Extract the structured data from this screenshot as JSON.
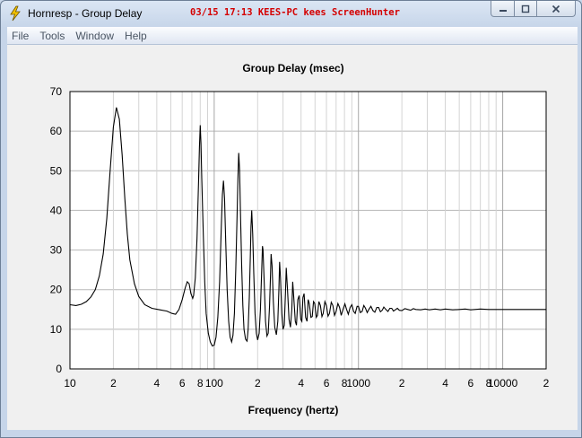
{
  "window": {
    "title": "Hornresp - Group Delay",
    "watermark": "03/15 17:13 KEES-PC kees ScreenHunter",
    "controls": [
      "minimize-icon",
      "maximize-icon",
      "close-icon"
    ]
  },
  "menu": {
    "items": [
      {
        "label": "File"
      },
      {
        "label": "Tools"
      },
      {
        "label": "Window"
      },
      {
        "label": "Help"
      }
    ]
  },
  "chart_data": {
    "type": "line",
    "title": "Group Delay (msec)",
    "xlabel": "Frequency (hertz)",
    "ylabel": "",
    "x_scale": "log",
    "xlim": [
      10,
      20000
    ],
    "ylim": [
      0,
      70
    ],
    "grid": true,
    "y_ticks": [
      "0",
      "10",
      "20",
      "30",
      "40",
      "50",
      "60",
      "70"
    ],
    "x_tick_labels": [
      {
        "value": 10,
        "label": "10"
      },
      {
        "value": 20,
        "label": "2"
      },
      {
        "value": 40,
        "label": "4"
      },
      {
        "value": 60,
        "label": "6"
      },
      {
        "value": 80,
        "label": "8"
      },
      {
        "value": 100,
        "label": "100"
      },
      {
        "value": 200,
        "label": "2"
      },
      {
        "value": 400,
        "label": "4"
      },
      {
        "value": 600,
        "label": "6"
      },
      {
        "value": 800,
        "label": "8"
      },
      {
        "value": 1000,
        "label": "1000"
      },
      {
        "value": 2000,
        "label": "2"
      },
      {
        "value": 4000,
        "label": "4"
      },
      {
        "value": 6000,
        "label": "6"
      },
      {
        "value": 8000,
        "label": "8"
      },
      {
        "value": 10000,
        "label": "10000"
      },
      {
        "value": 20000,
        "label": "2"
      }
    ],
    "series": [
      {
        "color": "#000000",
        "points": [
          [
            10,
            16.2
          ],
          [
            11,
            16.0
          ],
          [
            12,
            16.3
          ],
          [
            13,
            17.0
          ],
          [
            14,
            18.2
          ],
          [
            15,
            20.0
          ],
          [
            16,
            23.5
          ],
          [
            17,
            29.0
          ],
          [
            18,
            38.0
          ],
          [
            19,
            50.0
          ],
          [
            20,
            61.0
          ],
          [
            21,
            66.0
          ],
          [
            22,
            63.0
          ],
          [
            23,
            54.0
          ],
          [
            24,
            43.0
          ],
          [
            25,
            34.0
          ],
          [
            26,
            27.5
          ],
          [
            28,
            21.5
          ],
          [
            30,
            18.3
          ],
          [
            33,
            16.2
          ],
          [
            37,
            15.3
          ],
          [
            42,
            14.9
          ],
          [
            47,
            14.6
          ],
          [
            51,
            14.0
          ],
          [
            54,
            13.8
          ],
          [
            57,
            15.0
          ],
          [
            60,
            17.5
          ],
          [
            63,
            20.5
          ],
          [
            65,
            22.0
          ],
          [
            67,
            21.5
          ],
          [
            69,
            19.0
          ],
          [
            71,
            17.8
          ],
          [
            72,
            18.5
          ],
          [
            74,
            23.0
          ],
          [
            76,
            33.0
          ],
          [
            78,
            48.0
          ],
          [
            79,
            56.0
          ],
          [
            80,
            61.5
          ],
          [
            81,
            57.0
          ],
          [
            82,
            48.0
          ],
          [
            84,
            34.0
          ],
          [
            86,
            22.0
          ],
          [
            88,
            14.0
          ],
          [
            91,
            9.0
          ],
          [
            94,
            6.8
          ],
          [
            97,
            5.8
          ],
          [
            100,
            6.0
          ],
          [
            103,
            8.0
          ],
          [
            106,
            13.0
          ],
          [
            109,
            22.0
          ],
          [
            112,
            36.0
          ],
          [
            114,
            44.0
          ],
          [
            116,
            47.5
          ],
          [
            118,
            43.0
          ],
          [
            120,
            33.0
          ],
          [
            123,
            20.0
          ],
          [
            126,
            12.0
          ],
          [
            129,
            8.0
          ],
          [
            132,
            6.8
          ],
          [
            135,
            8.5
          ],
          [
            138,
            14.0
          ],
          [
            141,
            25.0
          ],
          [
            144,
            38.0
          ],
          [
            146,
            48.0
          ],
          [
            148,
            54.5
          ],
          [
            150,
            50.0
          ],
          [
            152,
            40.0
          ],
          [
            155,
            26.0
          ],
          [
            158,
            16.0
          ],
          [
            161,
            10.0
          ],
          [
            165,
            7.5
          ],
          [
            169,
            7.0
          ],
          [
            172,
            10.0
          ],
          [
            175,
            18.0
          ],
          [
            178,
            28.0
          ],
          [
            180,
            36.0
          ],
          [
            182,
            40.0
          ],
          [
            185,
            34.0
          ],
          [
            188,
            24.0
          ],
          [
            192,
            14.0
          ],
          [
            196,
            9.0
          ],
          [
            200,
            7.3
          ],
          [
            205,
            9.0
          ],
          [
            209,
            15.0
          ],
          [
            213,
            24.0
          ],
          [
            216,
            31.0
          ],
          [
            218,
            30.0
          ],
          [
            222,
            22.0
          ],
          [
            227,
            12.0
          ],
          [
            232,
            8.3
          ],
          [
            237,
            9.0
          ],
          [
            242,
            16.0
          ],
          [
            246,
            24.0
          ],
          [
            248,
            29.0
          ],
          [
            252,
            26.0
          ],
          [
            257,
            17.0
          ],
          [
            263,
            10.5
          ],
          [
            270,
            8.6
          ],
          [
            276,
            12.0
          ],
          [
            281,
            20.0
          ],
          [
            284,
            27.0
          ],
          [
            288,
            23.0
          ],
          [
            294,
            14.0
          ],
          [
            300,
            10.0
          ],
          [
            306,
            11.0
          ],
          [
            312,
            19.0
          ],
          [
            316,
            25.5
          ],
          [
            322,
            20.0
          ],
          [
            330,
            12.5
          ],
          [
            338,
            10.5
          ],
          [
            345,
            15.0
          ],
          [
            350,
            22.0
          ],
          [
            356,
            18.0
          ],
          [
            365,
            12.0
          ],
          [
            372,
            11.0
          ],
          [
            380,
            17.5
          ],
          [
            388,
            18.5
          ],
          [
            398,
            12.5
          ],
          [
            405,
            12.0
          ],
          [
            412,
            18.0
          ],
          [
            420,
            19.0
          ],
          [
            430,
            13.0
          ],
          [
            440,
            12.0
          ],
          [
            448,
            17.5
          ],
          [
            456,
            16.5
          ],
          [
            468,
            13.0
          ],
          [
            478,
            13.2
          ],
          [
            488,
            17.0
          ],
          [
            498,
            16.5
          ],
          [
            510,
            13.0
          ],
          [
            520,
            13.5
          ],
          [
            532,
            17.0
          ],
          [
            545,
            16.0
          ],
          [
            558,
            13.2
          ],
          [
            570,
            14.0
          ],
          [
            585,
            17.0
          ],
          [
            600,
            16.0
          ],
          [
            615,
            13.3
          ],
          [
            630,
            14.0
          ],
          [
            648,
            16.8
          ],
          [
            665,
            16.0
          ],
          [
            682,
            13.5
          ],
          [
            700,
            14.5
          ],
          [
            720,
            16.5
          ],
          [
            740,
            15.5
          ],
          [
            760,
            13.5
          ],
          [
            782,
            15.0
          ],
          [
            805,
            16.4
          ],
          [
            828,
            15.0
          ],
          [
            850,
            13.8
          ],
          [
            875,
            15.5
          ],
          [
            900,
            16.2
          ],
          [
            926,
            14.5
          ],
          [
            950,
            14.0
          ],
          [
            978,
            15.8
          ],
          [
            1000,
            15.8
          ],
          [
            1030,
            14.2
          ],
          [
            1060,
            14.5
          ],
          [
            1090,
            16.0
          ],
          [
            1120,
            15.3
          ],
          [
            1150,
            14.2
          ],
          [
            1180,
            15.0
          ],
          [
            1220,
            15.8
          ],
          [
            1260,
            14.7
          ],
          [
            1300,
            14.3
          ],
          [
            1340,
            15.5
          ],
          [
            1380,
            15.5
          ],
          [
            1420,
            14.4
          ],
          [
            1460,
            14.8
          ],
          [
            1500,
            15.6
          ],
          [
            1550,
            15.0
          ],
          [
            1600,
            14.5
          ],
          [
            1650,
            15.3
          ],
          [
            1700,
            15.3
          ],
          [
            1750,
            14.6
          ],
          [
            1800,
            14.9
          ],
          [
            1860,
            15.3
          ],
          [
            1920,
            14.8
          ],
          [
            2000,
            14.7
          ],
          [
            2100,
            15.2
          ],
          [
            2200,
            15.0
          ],
          [
            2300,
            14.8
          ],
          [
            2400,
            15.2
          ],
          [
            2500,
            15.0
          ],
          [
            2700,
            14.9
          ],
          [
            2900,
            15.1
          ],
          [
            3100,
            14.9
          ],
          [
            3400,
            15.1
          ],
          [
            3700,
            14.9
          ],
          [
            4000,
            15.1
          ],
          [
            4500,
            14.9
          ],
          [
            5000,
            15.0
          ],
          [
            5500,
            15.1
          ],
          [
            6000,
            14.9
          ],
          [
            7000,
            15.1
          ],
          [
            8000,
            15.0
          ],
          [
            9000,
            15.0
          ],
          [
            10000,
            15.0
          ],
          [
            12000,
            15.0
          ],
          [
            15000,
            15.0
          ],
          [
            20000,
            15.0
          ]
        ]
      }
    ]
  }
}
